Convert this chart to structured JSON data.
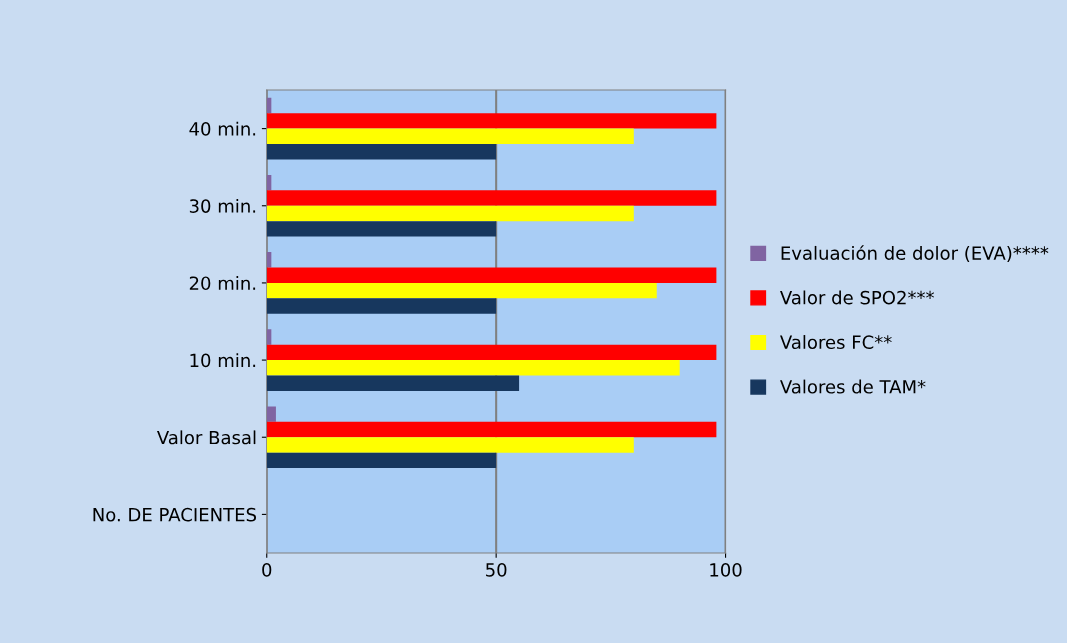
{
  "chart_data": {
    "type": "bar",
    "orientation": "horizontal",
    "categories": [
      "40 min.",
      "30 min.",
      "20 min.",
      "10 min.",
      "Valor Basal",
      "No. DE PACIENTES"
    ],
    "series": [
      {
        "name": "Evaluación de dolor (EVA)****",
        "color": "#8064a2",
        "values": [
          1,
          1,
          1,
          1,
          2,
          null
        ]
      },
      {
        "name": "Valor de SPO2***",
        "color": "#ff0000",
        "values": [
          98,
          98,
          98,
          98,
          98,
          null
        ]
      },
      {
        "name": "Valores FC**",
        "color": "#ffff00",
        "values": [
          80,
          80,
          85,
          90,
          80,
          null
        ]
      },
      {
        "name": "Valores de TAM*",
        "color": "#17375e",
        "values": [
          50,
          50,
          50,
          55,
          50,
          null
        ]
      }
    ],
    "xlim": [
      0,
      100
    ],
    "xticks": [
      0,
      50,
      100
    ],
    "grid": "x",
    "legend": "right"
  }
}
